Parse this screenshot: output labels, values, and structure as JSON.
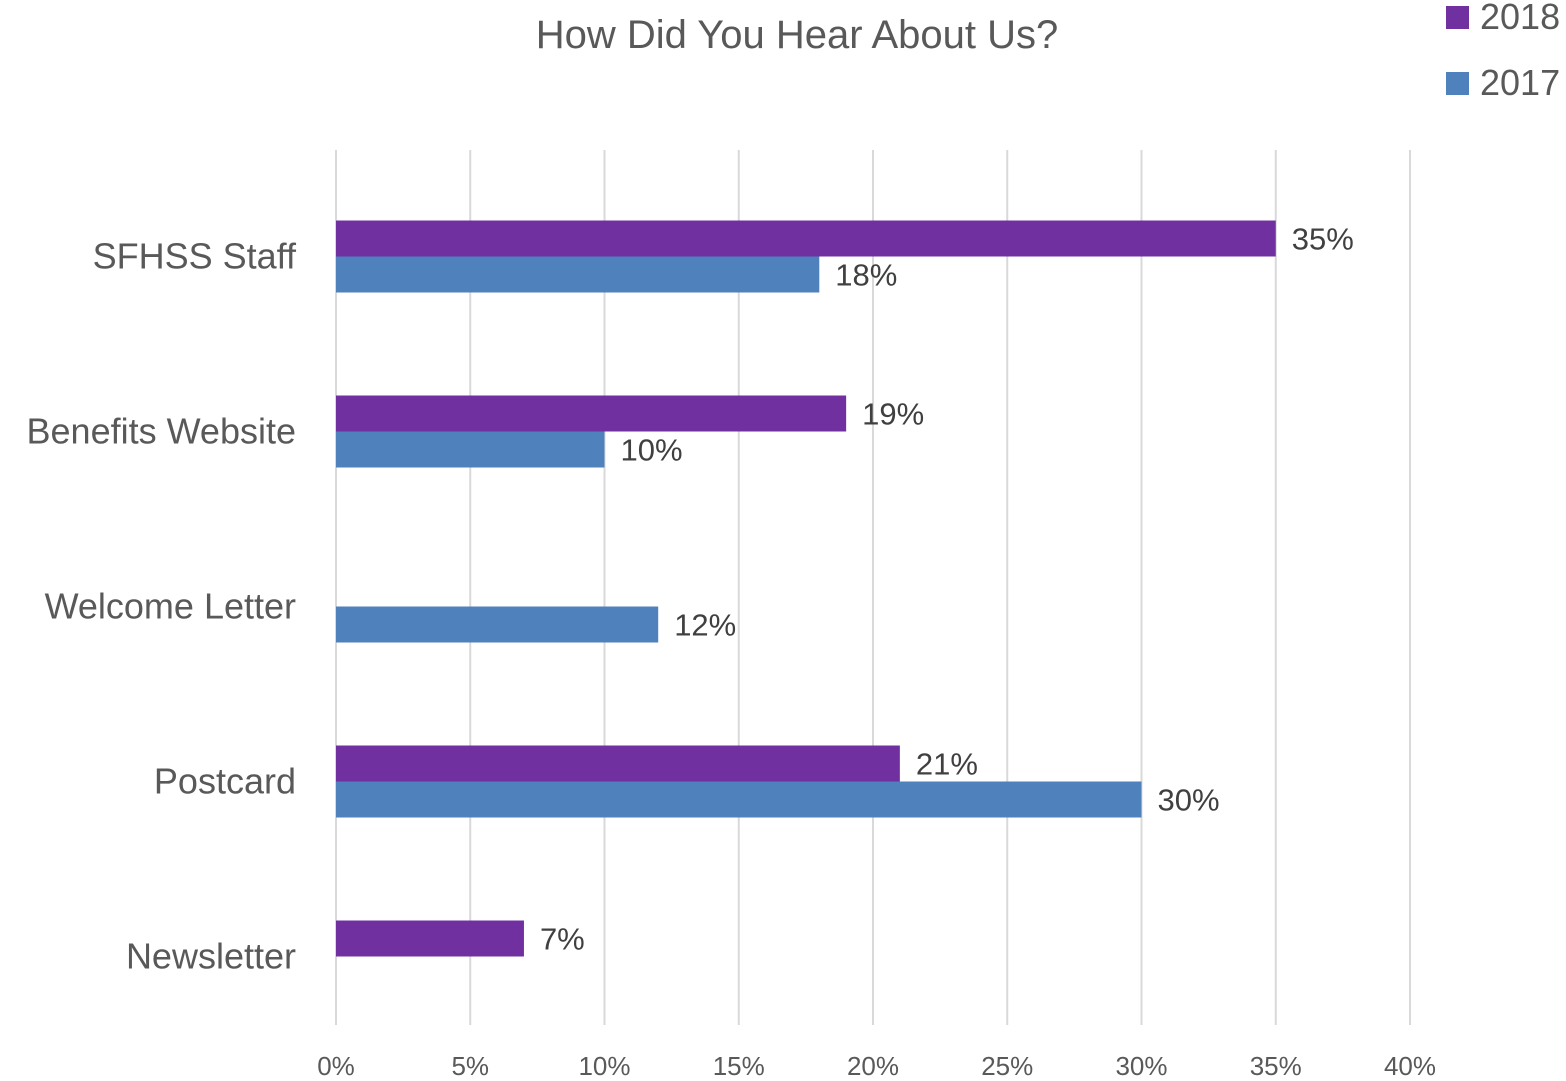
{
  "chart_data": {
    "type": "bar",
    "orientation": "horizontal",
    "title": "How Did You Hear About Us?",
    "categories": [
      "SFHSS Staff",
      "Benefits Website",
      "Welcome Letter",
      "Postcard",
      "Newsletter"
    ],
    "series": [
      {
        "name": "2018",
        "color": "#7030a0",
        "values": [
          35,
          19,
          null,
          21,
          7
        ]
      },
      {
        "name": "2017",
        "color": "#4f81bd",
        "values": [
          18,
          10,
          12,
          30,
          null
        ]
      }
    ],
    "xlim": [
      0,
      40
    ],
    "xticks": [
      0,
      5,
      10,
      15,
      20,
      25,
      30,
      35,
      40
    ],
    "tick_format": "{v}%",
    "data_label_format": "{v}%",
    "grid": "vertical",
    "legend": "top-right"
  }
}
